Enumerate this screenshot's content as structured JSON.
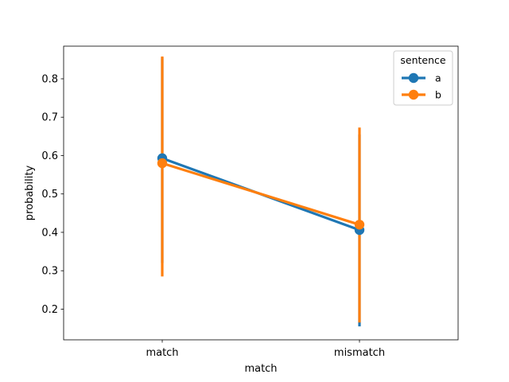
{
  "chart_data": {
    "type": "point",
    "xlabel": "match",
    "ylabel": "probability",
    "categories": [
      "match",
      "mismatch"
    ],
    "ylim": [
      0.12,
      0.885
    ],
    "yticks": [
      0.2,
      0.3,
      0.4,
      0.5,
      0.6,
      0.7,
      0.8
    ],
    "ytick_labels": [
      "0.2",
      "0.3",
      "0.4",
      "0.5",
      "0.6",
      "0.7",
      "0.8"
    ],
    "grid": false,
    "legend": {
      "title": "sentence",
      "position": "top-right"
    },
    "series": [
      {
        "name": "a",
        "color": "#1f77b4",
        "values": [
          0.593,
          0.406
        ],
        "error": [
          [
            0.32,
            0.855
          ],
          [
            0.155,
            0.655
          ]
        ]
      },
      {
        "name": "b",
        "color": "#ff7f0e",
        "values": [
          0.58,
          0.42
        ],
        "error": [
          [
            0.285,
            0.858
          ],
          [
            0.165,
            0.673
          ]
        ]
      }
    ]
  }
}
